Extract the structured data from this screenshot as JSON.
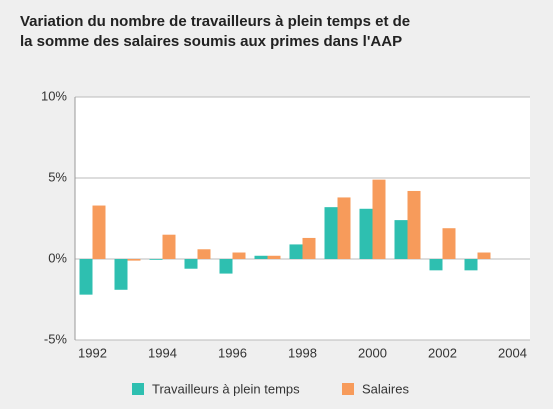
{
  "chart_data": {
    "type": "bar",
    "title": [
      "Variation du nombre de travailleurs à plein temps et de",
      "la somme des salaires soumis aux primes dans l'AAP"
    ],
    "categories": [
      "1992",
      null,
      "1994",
      null,
      "1996",
      null,
      "1998",
      null,
      "2000",
      null,
      "2002",
      null,
      "2004"
    ],
    "series": [
      {
        "name": "Travailleurs à plein temps",
        "color": "#2ebfb0",
        "values": [
          -2.2,
          -1.9,
          -0.05,
          -0.6,
          -0.9,
          0.2,
          0.9,
          3.2,
          3.1,
          2.4,
          -0.7,
          -0.7,
          null
        ]
      },
      {
        "name": "Salaires",
        "color": "#f79b5b",
        "values": [
          3.3,
          -0.1,
          1.5,
          0.6,
          0.4,
          0.2,
          1.3,
          3.8,
          4.9,
          4.2,
          1.9,
          0.4,
          null
        ]
      }
    ],
    "ylim": [
      -5,
      10
    ],
    "yticks": [
      {
        "value": -5,
        "label": "-5%"
      },
      {
        "value": 0,
        "label": "0%"
      },
      {
        "value": 5,
        "label": "5%"
      },
      {
        "value": 10,
        "label": "10%"
      }
    ],
    "grid": true
  }
}
